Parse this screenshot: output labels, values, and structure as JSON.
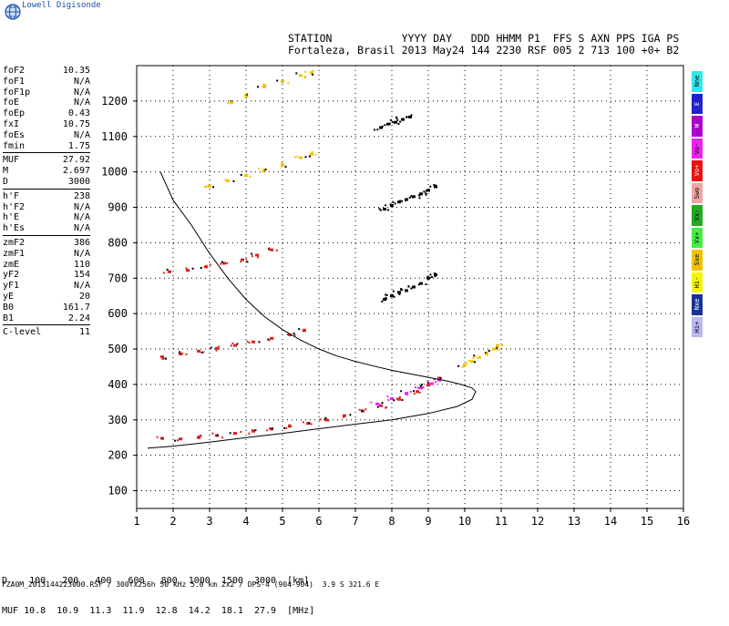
{
  "app": {
    "logo_text": "Lowell Digisonde"
  },
  "header": {
    "line1": "STATION           YYYY DAY   DDD HHMM P1  FFS S AXN PPS IGA PS",
    "line2": "Fortaleza, Brasil 2013 May24 144 2230 RSF 005 2 713 100 +0+ B2"
  },
  "parameters": {
    "group1": [
      {
        "name": "foF2",
        "value": "10.35"
      },
      {
        "name": "foF1",
        "value": "N/A"
      },
      {
        "name": "foF1p",
        "value": "N/A"
      },
      {
        "name": "foE",
        "value": "N/A"
      },
      {
        "name": "foEp",
        "value": "0.43"
      },
      {
        "name": "fxI",
        "value": "10.75"
      },
      {
        "name": "foEs",
        "value": "N/A"
      },
      {
        "name": "fmin",
        "value": "1.75"
      }
    ],
    "group2": [
      {
        "name": "MUF",
        "value": "27.92"
      },
      {
        "name": "M",
        "value": "2.697"
      },
      {
        "name": "D",
        "value": "3000"
      }
    ],
    "group3": [
      {
        "name": "h'F",
        "value": "238"
      },
      {
        "name": "h'F2",
        "value": "N/A"
      },
      {
        "name": "h'E",
        "value": "N/A"
      },
      {
        "name": "h'Es",
        "value": "N/A"
      }
    ],
    "group4": [
      {
        "name": "zmF2",
        "value": "386"
      },
      {
        "name": "zmF1",
        "value": "N/A"
      },
      {
        "name": "zmE",
        "value": "110"
      },
      {
        "name": "yF2",
        "value": "154"
      },
      {
        "name": "yF1",
        "value": "N/A"
      },
      {
        "name": "yE",
        "value": "20"
      },
      {
        "name": "B0",
        "value": "161.7"
      },
      {
        "name": "B1",
        "value": "2.24"
      }
    ],
    "group5": [
      {
        "name": "C-level",
        "value": "11"
      }
    ]
  },
  "legend": [
    {
      "label": "Nne",
      "color": "#33e6ee"
    },
    {
      "label": "E",
      "color": "#2222cc"
    },
    {
      "label": "W",
      "color": "#aa00cc"
    },
    {
      "label": "Vo-",
      "color": "#ee22ee"
    },
    {
      "label": "Vo+",
      "color": "#ee1111"
    },
    {
      "label": "Swo",
      "color": "#f2a3a3"
    },
    {
      "label": "Vx-",
      "color": "#22aa22"
    },
    {
      "label": "Vx+",
      "color": "#44ee44"
    },
    {
      "label": "Sxe",
      "color": "#f2c200"
    },
    {
      "label": "Hi-",
      "color": "#f4f400"
    },
    {
      "label": "Nxe",
      "color": "#1a3399"
    },
    {
      "label": "Hi+",
      "color": "#b8b8f4"
    }
  ],
  "muf_table": {
    "d_label": "D",
    "d_values": [
      "100",
      "200",
      "400",
      "600",
      "800",
      "1000",
      "1500",
      "3000"
    ],
    "d_unit": "[km]",
    "muf_label": "MUF",
    "muf_values": [
      "10.8",
      "10.9",
      "11.3",
      "11.9",
      "12.8",
      "14.2",
      "18.1",
      "27.9"
    ],
    "muf_unit": "[MHz]"
  },
  "footer": "FZA0M_2013144223000.RSF / 300fx256h 50 kHz 5.0 km 2x2 / DPS-4 (904-904)  3.9 S 321.6 E",
  "chart_data": {
    "type": "scatter",
    "xlim": [
      1,
      16
    ],
    "ylim": [
      50,
      1300
    ],
    "x_ticks": [
      "1",
      "2",
      "3",
      "4",
      "5",
      "6",
      "7",
      "8",
      "9",
      "10",
      "11",
      "12",
      "13",
      "14",
      "15",
      "16"
    ],
    "y_ticks": [
      "100",
      "200",
      "300",
      "400",
      "500",
      "600",
      "700",
      "800",
      "900",
      "1000",
      "1100",
      "1200"
    ],
    "grid": true,
    "traces": [
      {
        "name": "o_trace_1hop",
        "color": "#dd2222",
        "points": [
          [
            1.7,
            248
          ],
          [
            2.2,
            246
          ],
          [
            2.7,
            250
          ],
          [
            3.2,
            256
          ],
          [
            3.7,
            262
          ],
          [
            4.2,
            268
          ],
          [
            4.7,
            274
          ],
          [
            5.2,
            282
          ],
          [
            5.7,
            290
          ],
          [
            6.2,
            300
          ],
          [
            6.7,
            312
          ],
          [
            7.2,
            325
          ],
          [
            7.7,
            340
          ],
          [
            8.2,
            358
          ],
          [
            8.7,
            380
          ],
          [
            9.0,
            398
          ],
          [
            9.3,
            418
          ]
        ]
      },
      {
        "name": "x_trace_1hop",
        "color": "#ee22ee",
        "points": [
          [
            7.6,
            345
          ],
          [
            8.0,
            360
          ],
          [
            8.4,
            375
          ],
          [
            8.8,
            390
          ],
          [
            9.1,
            402
          ],
          [
            9.3,
            412
          ]
        ]
      },
      {
        "name": "x_trace_high",
        "color": "#f2c200",
        "points": [
          [
            10.0,
            455
          ],
          [
            10.2,
            465
          ],
          [
            10.4,
            476
          ],
          [
            10.6,
            488
          ],
          [
            10.8,
            500
          ],
          [
            10.9,
            510
          ]
        ]
      },
      {
        "name": "o_trace_2hop",
        "color": "#dd2222",
        "points": [
          [
            1.7,
            478
          ],
          [
            2.2,
            486
          ],
          [
            2.7,
            494
          ],
          [
            3.2,
            502
          ],
          [
            3.7,
            510
          ],
          [
            4.2,
            520
          ],
          [
            4.7,
            530
          ],
          [
            5.2,
            540
          ],
          [
            5.6,
            552
          ]
        ]
      },
      {
        "name": "o_trace_3hop",
        "color": "#dd2222",
        "points": [
          [
            1.9,
            718
          ],
          [
            2.4,
            722
          ],
          [
            2.9,
            732
          ],
          [
            3.4,
            742
          ],
          [
            3.9,
            752
          ],
          [
            4.3,
            765
          ],
          [
            4.7,
            780
          ]
        ]
      },
      {
        "name": "o_trace_4hop",
        "color": "#f2c200",
        "points": [
          [
            3.0,
            960
          ],
          [
            3.5,
            975
          ],
          [
            4.0,
            990
          ],
          [
            4.5,
            1005
          ],
          [
            5.0,
            1020
          ],
          [
            5.5,
            1040
          ],
          [
            5.8,
            1050
          ]
        ]
      },
      {
        "name": "o_trace_5hop",
        "color": "#f2c200",
        "points": [
          [
            3.6,
            1195
          ],
          [
            4.0,
            1215
          ],
          [
            4.5,
            1240
          ],
          [
            5.0,
            1255
          ],
          [
            5.5,
            1272
          ],
          [
            5.8,
            1280
          ]
        ]
      },
      {
        "name": "group_8_700",
        "color": "#000000",
        "points": [
          [
            7.8,
            640
          ],
          [
            8.0,
            650
          ],
          [
            8.2,
            660
          ],
          [
            8.4,
            665
          ],
          [
            8.6,
            675
          ],
          [
            8.8,
            685
          ],
          [
            9.0,
            700
          ],
          [
            9.2,
            710
          ]
        ]
      },
      {
        "name": "group_8_900",
        "color": "#000000",
        "points": [
          [
            7.8,
            895
          ],
          [
            8.0,
            905
          ],
          [
            8.2,
            915
          ],
          [
            8.4,
            922
          ],
          [
            8.6,
            930
          ],
          [
            8.8,
            938
          ],
          [
            9.0,
            948
          ],
          [
            9.2,
            958
          ]
        ]
      },
      {
        "name": "group_8_1130",
        "color": "#000000",
        "points": [
          [
            7.7,
            1125
          ],
          [
            7.9,
            1135
          ],
          [
            8.1,
            1140
          ],
          [
            8.3,
            1148
          ],
          [
            8.5,
            1155
          ]
        ]
      }
    ],
    "model_profile": [
      [
        1.65,
        1000
      ],
      [
        2.0,
        920
      ],
      [
        2.5,
        850
      ],
      [
        3.0,
        770
      ],
      [
        3.5,
        700
      ],
      [
        4.0,
        640
      ],
      [
        4.5,
        592
      ],
      [
        5.0,
        555
      ],
      [
        5.5,
        525
      ],
      [
        6.0,
        500
      ],
      [
        6.5,
        480
      ],
      [
        7.0,
        465
      ],
      [
        7.5,
        452
      ],
      [
        8.0,
        440
      ],
      [
        8.5,
        430
      ],
      [
        9.0,
        420
      ],
      [
        9.5,
        410
      ],
      [
        9.9,
        400
      ],
      [
        10.2,
        390
      ],
      [
        10.3,
        380
      ],
      [
        10.2,
        358
      ],
      [
        9.8,
        338
      ],
      [
        9.0,
        318
      ],
      [
        8.0,
        300
      ],
      [
        7.0,
        288
      ],
      [
        6.0,
        275
      ],
      [
        5.0,
        262
      ],
      [
        4.0,
        250
      ],
      [
        3.0,
        237
      ],
      [
        2.0,
        226
      ],
      [
        1.3,
        220
      ]
    ]
  }
}
